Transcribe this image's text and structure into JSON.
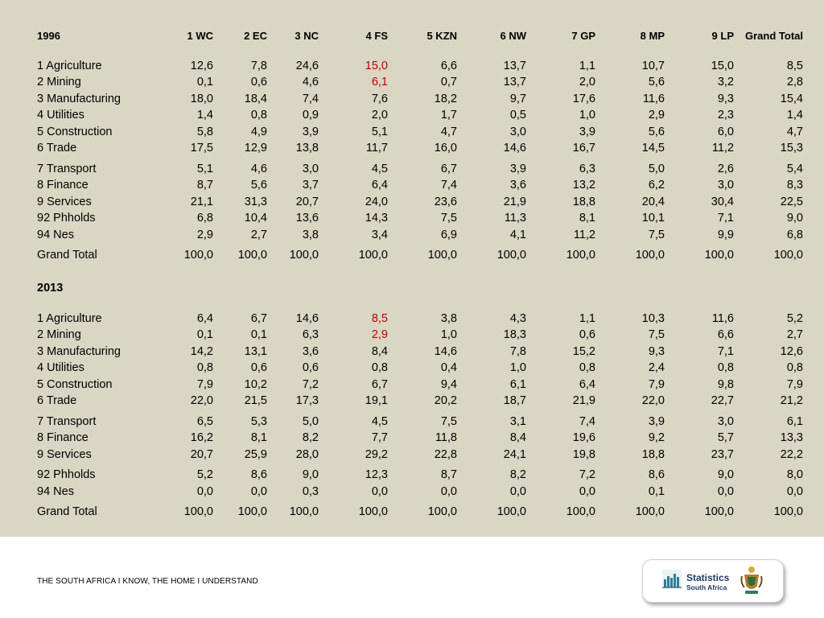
{
  "columns": [
    "1 WC",
    "2 EC",
    "3 NC",
    "4 FS",
    "5 KZN",
    "6 NW",
    "7 GP",
    "8 MP",
    "9 LP",
    "Grand Total"
  ],
  "section_1996": {
    "title": "1996",
    "rows": [
      {
        "label": "1 Agriculture",
        "values": [
          "12,6",
          "7,8",
          "24,6",
          "15,0",
          "6,6",
          "13,7",
          "1,1",
          "10,7",
          "15,0",
          "8,5"
        ]
      },
      {
        "label": "2 Mining",
        "values": [
          "0,1",
          "0,6",
          "4,6",
          "6,1",
          "0,7",
          "13,7",
          "2,0",
          "5,6",
          "3,2",
          "2,8"
        ]
      },
      {
        "label": "3 Manufacturing",
        "values": [
          "18,0",
          "18,4",
          "7,4",
          "7,6",
          "18,2",
          "9,7",
          "17,6",
          "11,6",
          "9,3",
          "15,4"
        ]
      },
      {
        "label": "4 Utilities",
        "values": [
          "1,4",
          "0,8",
          "0,9",
          "2,0",
          "1,7",
          "0,5",
          "1,0",
          "2,9",
          "2,3",
          "1,4"
        ]
      },
      {
        "label": "5 Construction",
        "values": [
          "5,8",
          "4,9",
          "3,9",
          "5,1",
          "4,7",
          "3,0",
          "3,9",
          "5,6",
          "6,0",
          "4,7"
        ]
      },
      {
        "label": "6 Trade",
        "values": [
          "17,5",
          "12,9",
          "13,8",
          "11,7",
          "16,0",
          "14,6",
          "16,7",
          "14,5",
          "11,2",
          "15,3"
        ]
      },
      {
        "label": "7 Transport",
        "values": [
          "5,1",
          "4,6",
          "3,0",
          "4,5",
          "6,7",
          "3,9",
          "6,3",
          "5,0",
          "2,6",
          "5,4"
        ]
      },
      {
        "label": "8 Finance",
        "values": [
          "8,7",
          "5,6",
          "3,7",
          "6,4",
          "7,4",
          "3,6",
          "13,2",
          "6,2",
          "3,0",
          "8,3"
        ]
      },
      {
        "label": "9 Services",
        "values": [
          "21,1",
          "31,3",
          "20,7",
          "24,0",
          "23,6",
          "21,9",
          "18,8",
          "20,4",
          "30,4",
          "22,5"
        ]
      },
      {
        "label": "92 Phholds",
        "values": [
          "6,8",
          "10,4",
          "13,6",
          "14,3",
          "7,5",
          "11,3",
          "8,1",
          "10,1",
          "7,1",
          "9,0"
        ]
      },
      {
        "label": "94 Nes",
        "values": [
          "2,9",
          "2,7",
          "3,8",
          "3,4",
          "6,9",
          "4,1",
          "11,2",
          "7,5",
          "9,9",
          "6,8"
        ]
      },
      {
        "label": "Grand Total",
        "values": [
          "100,0",
          "100,0",
          "100,0",
          "100,0",
          "100,0",
          "100,0",
          "100,0",
          "100,0",
          "100,0",
          "100,0"
        ]
      }
    ]
  },
  "section_2013": {
    "title": "2013",
    "rows": [
      {
        "label": "1 Agriculture",
        "values": [
          "6,4",
          "6,7",
          "14,6",
          "8,5",
          "3,8",
          "4,3",
          "1,1",
          "10,3",
          "11,6",
          "5,2"
        ]
      },
      {
        "label": "2 Mining",
        "values": [
          "0,1",
          "0,1",
          "6,3",
          "2,9",
          "1,0",
          "18,3",
          "0,6",
          "7,5",
          "6,6",
          "2,7"
        ]
      },
      {
        "label": "3 Manufacturing",
        "values": [
          "14,2",
          "13,1",
          "3,6",
          "8,4",
          "14,6",
          "7,8",
          "15,2",
          "9,3",
          "7,1",
          "12,6"
        ]
      },
      {
        "label": "4 Utilities",
        "values": [
          "0,8",
          "0,6",
          "0,6",
          "0,8",
          "0,4",
          "1,0",
          "0,8",
          "2,4",
          "0,8",
          "0,8"
        ]
      },
      {
        "label": "5 Construction",
        "values": [
          "7,9",
          "10,2",
          "7,2",
          "6,7",
          "9,4",
          "6,1",
          "6,4",
          "7,9",
          "9,8",
          "7,9"
        ]
      },
      {
        "label": "6 Trade",
        "values": [
          "22,0",
          "21,5",
          "17,3",
          "19,1",
          "20,2",
          "18,7",
          "21,9",
          "22,0",
          "22,7",
          "21,2"
        ]
      },
      {
        "label": "7 Transport",
        "values": [
          "6,5",
          "5,3",
          "5,0",
          "4,5",
          "7,5",
          "3,1",
          "7,4",
          "3,9",
          "3,0",
          "6,1"
        ]
      },
      {
        "label": "8 Finance",
        "values": [
          "16,2",
          "8,1",
          "8,2",
          "7,7",
          "11,8",
          "8,4",
          "19,6",
          "9,2",
          "5,7",
          "13,3"
        ]
      },
      {
        "label": "9 Services",
        "values": [
          "20,7",
          "25,9",
          "28,0",
          "29,2",
          "22,8",
          "24,1",
          "19,8",
          "18,8",
          "23,7",
          "22,2"
        ]
      },
      {
        "label": "92 Phholds",
        "values": [
          "5,2",
          "8,6",
          "9,0",
          "12,3",
          "8,7",
          "8,2",
          "7,2",
          "8,6",
          "9,0",
          "8,0"
        ]
      },
      {
        "label": "94 Nes",
        "values": [
          "0,0",
          "0,0",
          "0,3",
          "0,0",
          "0,0",
          "0,0",
          "0,0",
          "0,1",
          "0,0",
          "0,0"
        ]
      },
      {
        "label": "Grand Total",
        "values": [
          "100,0",
          "100,0",
          "100,0",
          "100,0",
          "100,0",
          "100,0",
          "100,0",
          "100,0",
          "100,0",
          "100,0"
        ]
      }
    ]
  },
  "highlight": {
    "column_index": 3,
    "row_indices": [
      0,
      1
    ],
    "color": "#c00000"
  },
  "colors": {
    "background": "#d9d6c4",
    "footer_background": "#ffffff",
    "logo_blue": "#1f3a68"
  },
  "footer": {
    "text": "THE SOUTH AFRICA I KNOW, THE HOME I UNDERSTAND"
  },
  "logo": {
    "line1": "Statistics",
    "line2": "South Africa",
    "icon": "bar-chart-icon",
    "emblem": "coat-of-arms-icon"
  }
}
